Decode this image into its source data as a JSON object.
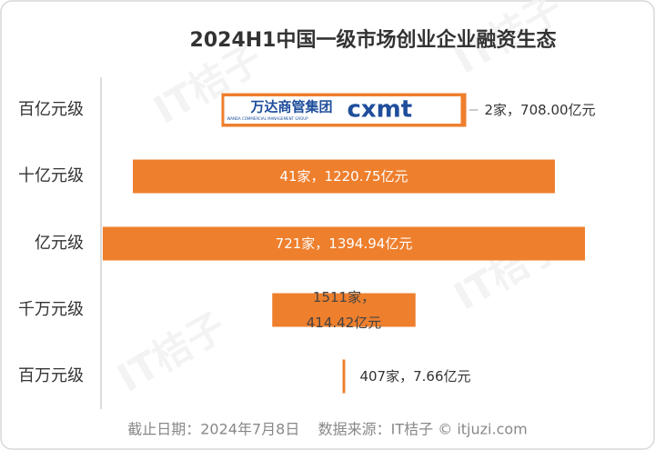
{
  "chart_data": {
    "type": "bar",
    "orientation": "horizontal-centered",
    "title": "2024H1中国一级市场创业企业融资生态",
    "categories": [
      "百亿元级",
      "十亿元级",
      "亿元级",
      "千万元级",
      "百万元级"
    ],
    "values": [
      708.0,
      1220.75,
      1394.94,
      414.42,
      7.66
    ],
    "value_labels": [
      "2家，708.00亿元",
      "41家，1220.75亿元",
      "721家，1394.94亿元",
      "1511家，414.42亿元",
      "407家，7.66亿元"
    ],
    "color": "#ee7f2d",
    "logos": [
      "万达商管集团",
      "WANDA COMMERCIAL MANAGEMENT GROUP",
      "cxmt"
    ],
    "watermark": "IT桔子",
    "footer": "截止日期：2024年7月8日    数据来源：IT桔子 © itjuzi.com"
  }
}
